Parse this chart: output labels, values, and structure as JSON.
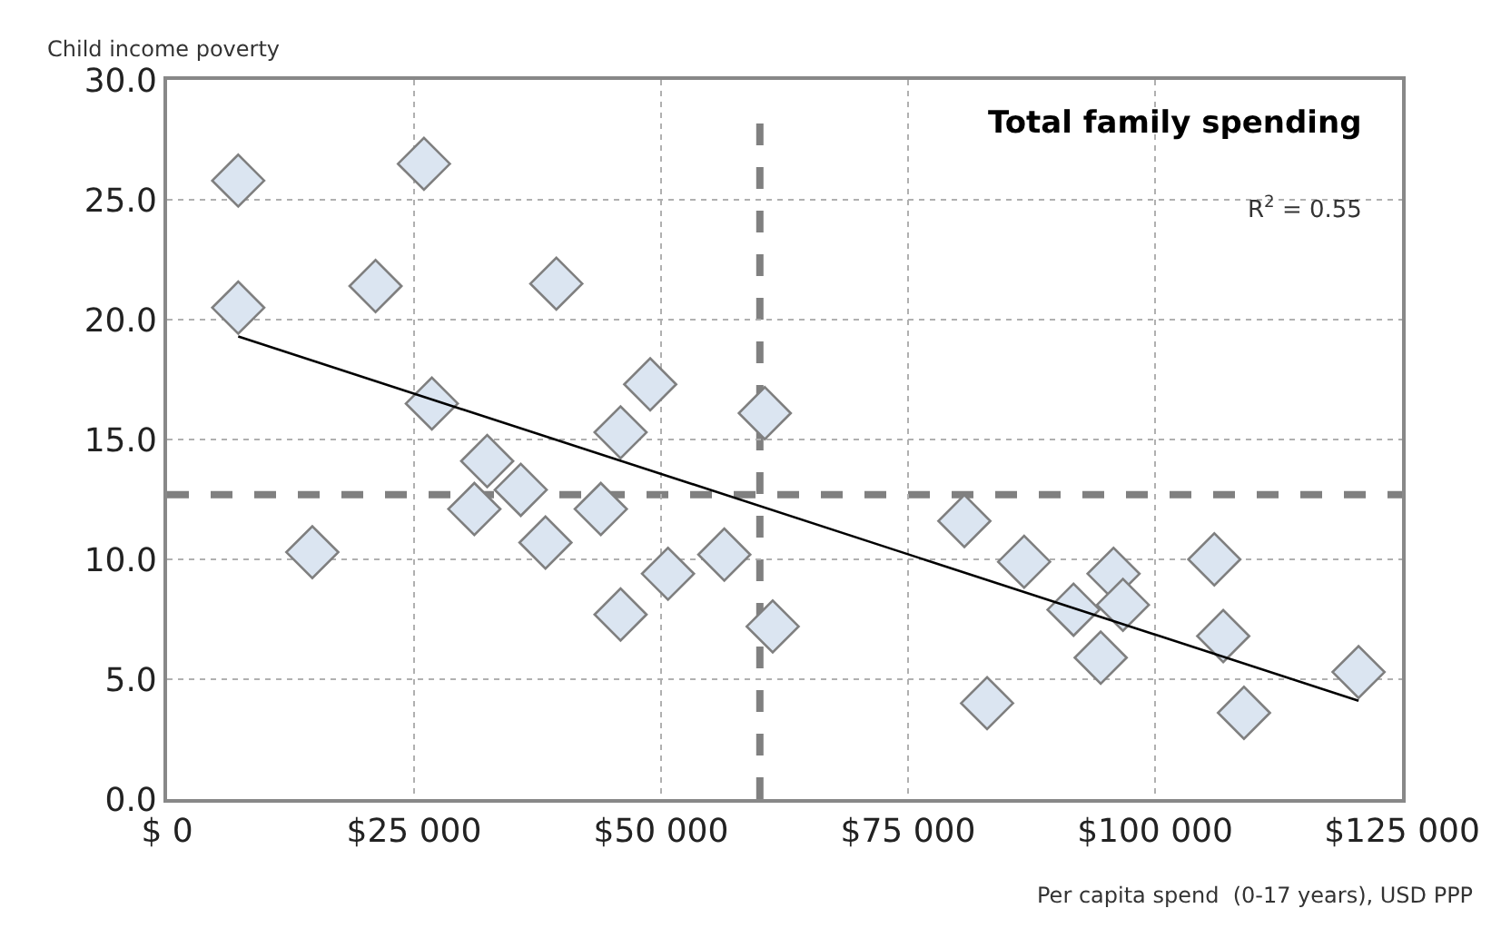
{
  "chart_data": {
    "type": "scatter",
    "title": "Total family spending",
    "xlabel": "Per capita spend  (0-17 years), USD PPP",
    "ylabel": "Child income poverty",
    "annotations": [
      "R$^{2}$ = 0.55"
    ],
    "xlim": [
      0,
      125000
    ],
    "xticks": [
      {
        "value": 0,
        "label": "$ 0"
      },
      {
        "value": 25000,
        "label": "$25 000"
      },
      {
        "value": 50000,
        "label": "$50 000"
      },
      {
        "value": 75000,
        "label": "$75 000"
      },
      {
        "value": 100000,
        "label": "$100 000"
      },
      {
        "value": 125000,
        "label": "$125 000"
      }
    ],
    "ylim": [
      0,
      30
    ],
    "yticks": [
      {
        "value": 0,
        "label": "0.0"
      },
      {
        "value": 5,
        "label": "5.0"
      },
      {
        "value": 10,
        "label": "10.0"
      },
      {
        "value": 15,
        "label": "15.0"
      },
      {
        "value": 20,
        "label": "20.0"
      },
      {
        "value": 25,
        "label": "25.0"
      },
      {
        "value": 30,
        "label": "30.0"
      }
    ],
    "grid": true,
    "series": [
      {
        "marker": "diamond",
        "color": "#dbe5f1",
        "x": [
          7200,
          26000,
          7200,
          21100,
          39400,
          26800,
          48900,
          60500,
          45900,
          32400,
          31100,
          35800,
          43900,
          38300,
          14700,
          50700,
          56400,
          45900,
          61300,
          80700,
          86750,
          95800,
          91750,
          96750,
          94500,
          83000,
          106000,
          106900,
          109000,
          120600
        ],
        "values": [
          25.8,
          26.5,
          20.5,
          21.4,
          21.5,
          16.5,
          17.3,
          16.1,
          15.3,
          14.1,
          12.1,
          12.9,
          12.1,
          10.7,
          10.3,
          9.4,
          10.2,
          7.7,
          7.2,
          11.6,
          9.9,
          9.4,
          7.9,
          8.1,
          5.9,
          4.0,
          10.0,
          6.8,
          3.6,
          5.3
        ]
      },
      {
        "type": "line",
        "color": "#000000",
        "line_style": "solid",
        "x": [
          7200,
          120600
        ],
        "values": [
          19.3,
          4.1
        ]
      }
    ],
    "ref_lines": [
      {
        "axis": "x",
        "value": 60000,
        "color": "#808080",
        "line_style": "dashed"
      },
      {
        "axis": "y",
        "value": 12.7,
        "color": "#808080",
        "line_style": "dashed"
      }
    ]
  }
}
